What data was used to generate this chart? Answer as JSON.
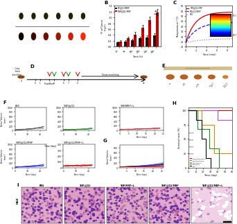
{
  "B": {
    "groups": [
      "2h",
      "6h",
      "12h",
      "24h",
      "36h",
      "48h"
    ],
    "NP_values": [
      0.15,
      0.18,
      0.22,
      0.28,
      0.32,
      0.38
    ],
    "TNP_values": [
      0.18,
      0.28,
      0.42,
      0.65,
      0.9,
      1.18
    ],
    "NP_errors": [
      0.03,
      0.04,
      0.04,
      0.05,
      0.06,
      0.07
    ],
    "TNP_errors": [
      0.04,
      0.06,
      0.08,
      0.1,
      0.12,
      0.1
    ],
    "NP_color": "#1a1a1a",
    "TNP_color": "#cc0000",
    "ylim": [
      0,
      1.4
    ]
  },
  "C": {
    "TNP_color": "#cc0000",
    "NP_color": "#1a1aff",
    "PBS_color": "#888888"
  },
  "F_colors": [
    "#555555",
    "#228B22",
    "#cc3333",
    "#1a1aff",
    "#cc0000"
  ],
  "F_labels": [
    "PBS",
    "TNP@JQ1",
    "TNP/MRP+L",
    "TNP@JQ1/MRP",
    "TNP@JQ1/MRP+L"
  ],
  "F_growth": [
    0.2,
    0.16,
    0.13,
    0.17,
    0.04
  ],
  "G_colors": [
    "#555555",
    "#228B22",
    "#cc3333",
    "#1a1aff",
    "#cc0000"
  ],
  "H_colors": [
    "#cc0000",
    "#cc44cc",
    "#dd8800",
    "#228B22",
    "#000000"
  ],
  "H_labels": [
    "TNP@JQ1/MRP+L",
    "TNP@JQ1/MRP",
    "TNP/MRP+L",
    "TNP@JQ1",
    "PBS"
  ],
  "HE_labels": [
    "PBS",
    "TNP@JQ1",
    "TNP/MRP+L",
    "TNP@JQ1/MRP",
    "TNP@JQ1/MRP+L"
  ]
}
